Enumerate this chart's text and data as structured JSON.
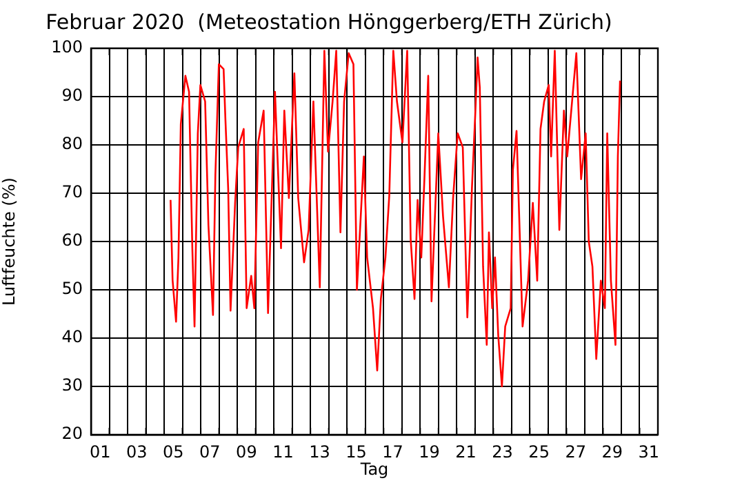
{
  "chart_data": {
    "type": "line",
    "title": "Februar 2020  (Meteostation Hönggerberg/ETH Zürich)",
    "xlabel": "Tag",
    "ylabel": "Luftfeuchte (%)",
    "xlim": [
      1,
      32
    ],
    "xticks": [
      {
        "value": 1,
        "label": null
      },
      {
        "value": 1.5,
        "label": "01"
      },
      {
        "value": 2,
        "label": null
      },
      {
        "value": 3,
        "label": null
      },
      {
        "value": 3.5,
        "label": "03"
      },
      {
        "value": 4,
        "label": null
      },
      {
        "value": 5,
        "label": null
      },
      {
        "value": 5.5,
        "label": "05"
      },
      {
        "value": 6,
        "label": null
      },
      {
        "value": 7,
        "label": null
      },
      {
        "value": 7.5,
        "label": "07"
      },
      {
        "value": 8,
        "label": null
      },
      {
        "value": 9,
        "label": null
      },
      {
        "value": 9.5,
        "label": "09"
      },
      {
        "value": 10,
        "label": null
      },
      {
        "value": 11,
        "label": null
      },
      {
        "value": 11.5,
        "label": "11"
      },
      {
        "value": 12,
        "label": null
      },
      {
        "value": 13,
        "label": null
      },
      {
        "value": 13.5,
        "label": "13"
      },
      {
        "value": 14,
        "label": null
      },
      {
        "value": 15,
        "label": null
      },
      {
        "value": 15.5,
        "label": "15"
      },
      {
        "value": 16,
        "label": null
      },
      {
        "value": 17,
        "label": null
      },
      {
        "value": 17.5,
        "label": "17"
      },
      {
        "value": 18,
        "label": null
      },
      {
        "value": 19,
        "label": null
      },
      {
        "value": 19.5,
        "label": "19"
      },
      {
        "value": 20,
        "label": null
      },
      {
        "value": 21,
        "label": null
      },
      {
        "value": 21.5,
        "label": "21"
      },
      {
        "value": 22,
        "label": null
      },
      {
        "value": 23,
        "label": null
      },
      {
        "value": 23.5,
        "label": "23"
      },
      {
        "value": 24,
        "label": null
      },
      {
        "value": 25,
        "label": null
      },
      {
        "value": 25.5,
        "label": "25"
      },
      {
        "value": 26,
        "label": null
      },
      {
        "value": 27,
        "label": null
      },
      {
        "value": 27.5,
        "label": "27"
      },
      {
        "value": 28,
        "label": null
      },
      {
        "value": 29,
        "label": null
      },
      {
        "value": 29.5,
        "label": "29"
      },
      {
        "value": 30,
        "label": null
      },
      {
        "value": 31,
        "label": null
      },
      {
        "value": 31.5,
        "label": "31"
      },
      {
        "value": 32,
        "label": null
      }
    ],
    "ylim": [
      20,
      100
    ],
    "yticks": [
      20,
      30,
      40,
      50,
      60,
      70,
      80,
      90,
      100
    ],
    "grid": true,
    "legend": false,
    "marker": "none",
    "line_style": "solid",
    "series": [
      {
        "color": "#ff0000",
        "x": [
          5.35,
          5.46,
          5.65,
          5.78,
          5.91,
          6.16,
          6.36,
          6.54,
          6.66,
          6.84,
          6.98,
          7.24,
          7.42,
          7.67,
          7.8,
          7.99,
          8.25,
          8.35,
          8.5,
          8.63,
          8.88,
          9.05,
          9.35,
          9.51,
          9.76,
          9.93,
          10.14,
          10.44,
          10.68,
          11.06,
          11.39,
          11.57,
          11.82,
          12.12,
          12.33,
          12.65,
          12.9,
          13.16,
          13.51,
          13.76,
          13.96,
          14.21,
          14.41,
          14.64,
          14.84,
          15.09,
          15.35,
          15.54,
          15.92,
          16.1,
          16.42,
          16.65,
          16.85,
          17.1,
          17.31,
          17.53,
          17.73,
          18.03,
          18.29,
          18.48,
          18.69,
          18.86,
          19.06,
          19.24,
          19.44,
          19.62,
          19.99,
          20.25,
          20.57,
          20.8,
          21.05,
          21.33,
          21.58,
          21.83,
          22.01,
          22.14,
          22.26,
          22.44,
          22.64,
          22.76,
          22.94,
          23.09,
          23.27,
          23.47,
          23.65,
          23.95,
          24.07,
          24.27,
          24.6,
          24.9,
          25.16,
          25.4,
          25.58,
          25.78,
          26.03,
          26.16,
          26.36,
          26.61,
          26.86,
          27.04,
          27.54,
          27.8,
          28.05,
          28.22,
          28.42,
          28.63,
          28.88,
          29.1,
          29.23,
          29.43,
          29.68,
          29.81,
          29.93
        ],
        "values": [
          68.6,
          52,
          43.4,
          56.6,
          84.3,
          94.3,
          91,
          58.6,
          42.4,
          82.4,
          92.4,
          89,
          63.4,
          44.8,
          73.8,
          96.7,
          95.7,
          85.2,
          71,
          45.7,
          68,
          79.5,
          83.3,
          46.2,
          52.9,
          46.2,
          80.5,
          87.1,
          45.2,
          91,
          58.6,
          87.1,
          69,
          94.8,
          69,
          55.7,
          62.4,
          89,
          50.5,
          99.5,
          78.6,
          89,
          99.5,
          61.9,
          89,
          99,
          96.7,
          50,
          77.6,
          56.7,
          46.2,
          33.3,
          48.1,
          56.7,
          69.5,
          99.5,
          89,
          80.5,
          99.5,
          60.5,
          48.1,
          68.6,
          56.7,
          73.8,
          94.3,
          47.6,
          82.4,
          65.2,
          50.5,
          69,
          82.4,
          79.5,
          44.3,
          71,
          86.2,
          98.1,
          91.9,
          54.8,
          38.6,
          61.9,
          46.2,
          56.7,
          40.5,
          30,
          42.4,
          46.2,
          74.8,
          82.9,
          42.4,
          51.9,
          68,
          51.9,
          83.3,
          89,
          92.4,
          77.6,
          99.5,
          62.4,
          87.1,
          77.6,
          99,
          72.9,
          82.4,
          60,
          54.8,
          35.7,
          51.9,
          46.2,
          82.4,
          51.9,
          38.6,
          77.6,
          93.3
        ]
      }
    ]
  }
}
